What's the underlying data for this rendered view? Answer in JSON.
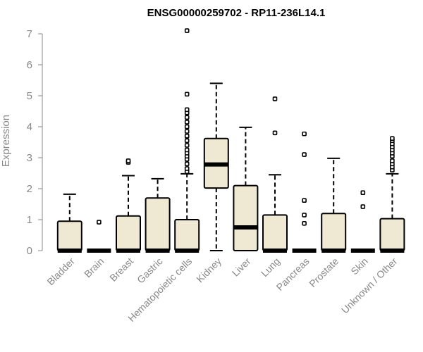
{
  "chart_data": {
    "type": "boxplot",
    "title": "ENSG00000259702 - RP11-236L14.1",
    "xlabel": "",
    "ylabel": "Expression",
    "ylim": [
      0,
      7.1
    ],
    "yticks": [
      0,
      1,
      2,
      3,
      4,
      5,
      6,
      7
    ],
    "grid": false,
    "legend": "none",
    "colors": {
      "box_fill": "#efe8d3",
      "stroke": "#000000",
      "axis_text": "#888888"
    },
    "categories": [
      "Bladder",
      "Brain",
      "Breast",
      "Gastric",
      "Hematopoietic cells",
      "Kidney",
      "Liver",
      "Lung",
      "Pancreas",
      "Prostate",
      "Skin",
      "Unknown / Other"
    ],
    "boxes": [
      {
        "category": "Bladder",
        "q1": 0,
        "median": 0,
        "q3": 0.95,
        "whisker_low": 0,
        "whisker_high": 1.82,
        "outliers": []
      },
      {
        "category": "Brain",
        "q1": 0,
        "median": 0,
        "q3": 0,
        "whisker_low": 0,
        "whisker_high": 0,
        "outliers": [
          0.92
        ]
      },
      {
        "category": "Breast",
        "q1": 0,
        "median": 0,
        "q3": 1.12,
        "whisker_low": 0,
        "whisker_high": 2.42,
        "outliers": [
          2.85,
          2.9
        ]
      },
      {
        "category": "Gastric",
        "q1": 0,
        "median": 0,
        "q3": 1.7,
        "whisker_low": 0,
        "whisker_high": 2.32,
        "outliers": []
      },
      {
        "category": "Hematopoietic cells",
        "q1": 0,
        "median": 0,
        "q3": 1.0,
        "whisker_low": 0,
        "whisker_high": 2.48,
        "outliers": [
          2.55,
          2.65,
          2.8,
          2.95,
          3.05,
          3.15,
          3.25,
          3.4,
          3.55,
          3.7,
          3.85,
          4.0,
          4.15,
          4.3,
          4.45,
          4.55,
          5.05,
          7.1
        ]
      },
      {
        "category": "Kidney",
        "q1": 2.02,
        "median": 2.78,
        "q3": 3.62,
        "whisker_low": 0,
        "whisker_high": 5.4,
        "outliers": []
      },
      {
        "category": "Liver",
        "q1": 0,
        "median": 0.75,
        "q3": 2.1,
        "whisker_low": 0,
        "whisker_high": 3.98,
        "outliers": []
      },
      {
        "category": "Lung",
        "q1": 0,
        "median": 0,
        "q3": 1.15,
        "whisker_low": 0,
        "whisker_high": 2.45,
        "outliers": [
          3.8,
          4.9
        ]
      },
      {
        "category": "Pancreas",
        "q1": 0,
        "median": 0,
        "q3": 0,
        "whisker_low": 0,
        "whisker_high": 0,
        "outliers": [
          0.88,
          1.15,
          1.62,
          3.1,
          3.77
        ]
      },
      {
        "category": "Prostate",
        "q1": 0,
        "median": 0,
        "q3": 1.2,
        "whisker_low": 0,
        "whisker_high": 2.98,
        "outliers": []
      },
      {
        "category": "Skin",
        "q1": 0,
        "median": 0,
        "q3": 0,
        "whisker_low": 0,
        "whisker_high": 0,
        "outliers": [
          1.42,
          1.87
        ]
      },
      {
        "category": "Unknown / Other",
        "q1": 0,
        "median": 0,
        "q3": 1.03,
        "whisker_low": 0,
        "whisker_high": 2.48,
        "outliers": [
          2.6,
          2.7,
          2.8,
          2.9,
          3.05,
          3.15,
          3.25,
          3.35,
          3.45,
          3.55,
          3.62
        ]
      }
    ]
  }
}
